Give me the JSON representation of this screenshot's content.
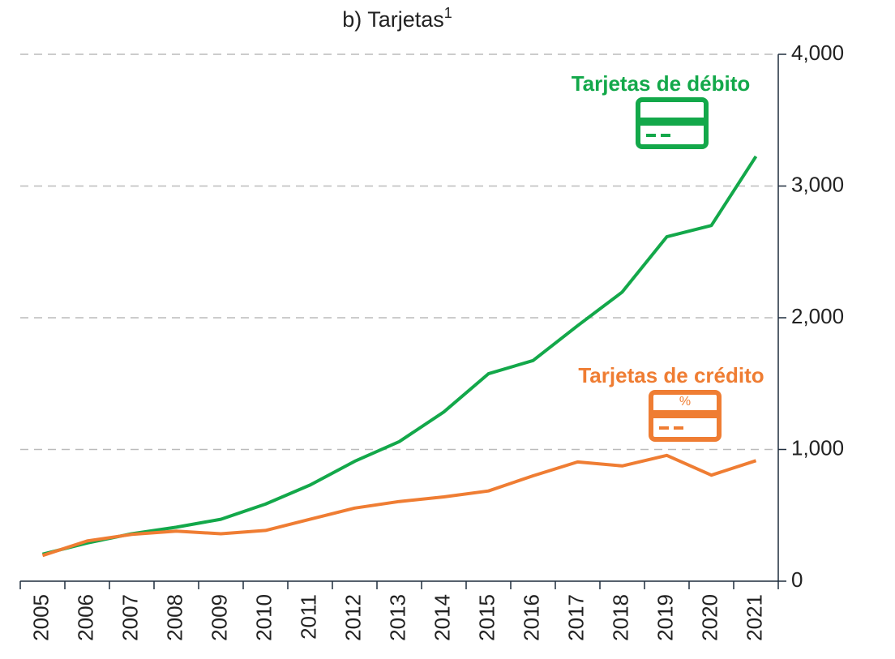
{
  "chart_data": {
    "type": "line",
    "title": "b) Tarjetas",
    "title_note": "1",
    "categories": [
      "2005",
      "2006",
      "2007",
      "2008",
      "2009",
      "2010",
      "2011",
      "2012",
      "2013",
      "2014",
      "2015",
      "2016",
      "2017",
      "2018",
      "2019",
      "2020",
      "2021"
    ],
    "series": [
      {
        "name": "Tarjetas de débito",
        "color": "#13a84a",
        "values": [
          205,
          290,
          360,
          410,
          470,
          585,
          730,
          910,
          1060,
          1285,
          1575,
          1675,
          1940,
          2195,
          2615,
          2700,
          3225
        ]
      },
      {
        "name": "Tarjetas de crédito",
        "color": "#ef7d33",
        "icon_label": "%",
        "values": [
          195,
          305,
          355,
          380,
          360,
          385,
          470,
          555,
          605,
          640,
          685,
          800,
          905,
          875,
          955,
          805,
          915
        ]
      }
    ],
    "ylim": [
      0,
      4000
    ],
    "yticks": [
      0,
      {
        "value": 1000,
        "label": "1,000"
      },
      {
        "value": 2000,
        "label": "2,000"
      },
      {
        "value": 3000,
        "label": "3,000"
      },
      {
        "value": 4000,
        "label": "4,000"
      }
    ],
    "grid": true,
    "y_axis_side": "right"
  }
}
